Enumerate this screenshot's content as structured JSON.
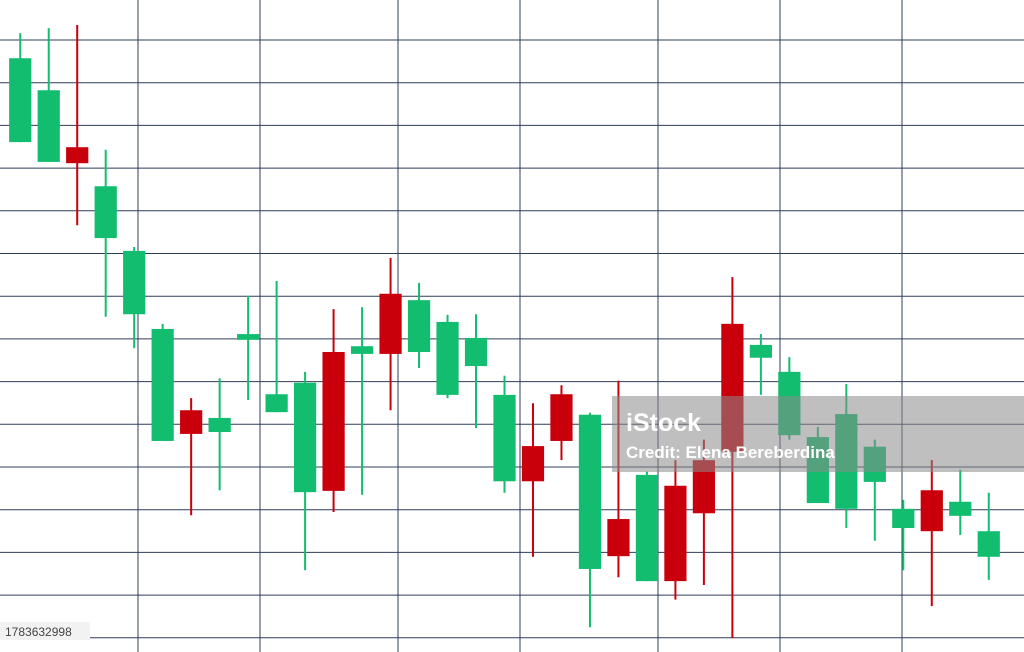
{
  "chart_data": {
    "type": "candlestick",
    "ylim": [
      0,
      100
    ],
    "grid": true,
    "up_color": "#12bd6f",
    "down_color": "#c9000c",
    "open": [
      77.8,
      74.7,
      77.0,
      62.8,
      50.9,
      31.1,
      35.9,
      32.5,
      46.9,
      35.6,
      23.1,
      45.0,
      44.7,
      54.1,
      45.0,
      38.3,
      42.8,
      24.8,
      30.3,
      38.4,
      11.1,
      18.9,
      9.2,
      24.1,
      28.1,
      49.4,
      44.1,
      32.0,
      21.4,
      20.5,
      24.7,
      17.5,
      23.4,
      19.4,
      13.0
    ],
    "high": [
      94.8,
      95.6,
      96.1,
      76.6,
      61.4,
      49.4,
      37.8,
      40.9,
      53.8,
      56.1,
      41.9,
      51.7,
      52.0,
      59.7,
      55.8,
      50.8,
      50.9,
      41.3,
      37.0,
      39.8,
      35.5,
      40.5,
      26.3,
      28.1,
      31.3,
      56.7,
      47.8,
      44.2,
      33.3,
      40.0,
      31.3,
      21.9,
      28.1,
      26.6,
      23.0
    ],
    "low": [
      77.8,
      74.7,
      64.8,
      50.5,
      45.6,
      31.1,
      19.5,
      23.4,
      37.5,
      35.6,
      10.9,
      20.0,
      22.7,
      35.9,
      42.5,
      37.8,
      33.1,
      23.0,
      13.0,
      28.1,
      2.0,
      9.8,
      9.2,
      6.3,
      8.6,
      0.3,
      38.3,
      31.3,
      21.4,
      17.5,
      15.5,
      10.9,
      5.3,
      16.4,
      9.4
    ],
    "close": [
      90.9,
      85.9,
      74.5,
      70.9,
      60.8,
      48.6,
      32.2,
      34.7,
      47.8,
      38.4,
      40.2,
      23.3,
      45.9,
      44.7,
      53.1,
      49.7,
      47.2,
      38.3,
      24.8,
      31.1,
      35.2,
      13.1,
      25.8,
      9.2,
      19.8,
      29.4,
      46.1,
      41.9,
      31.7,
      35.3,
      30.2,
      20.5,
      17.0,
      21.6,
      17.0
    ]
  },
  "watermark": {
    "brand": "iStock",
    "credit": "Credit: Elena Bereberdina",
    "id": "1783632998"
  }
}
